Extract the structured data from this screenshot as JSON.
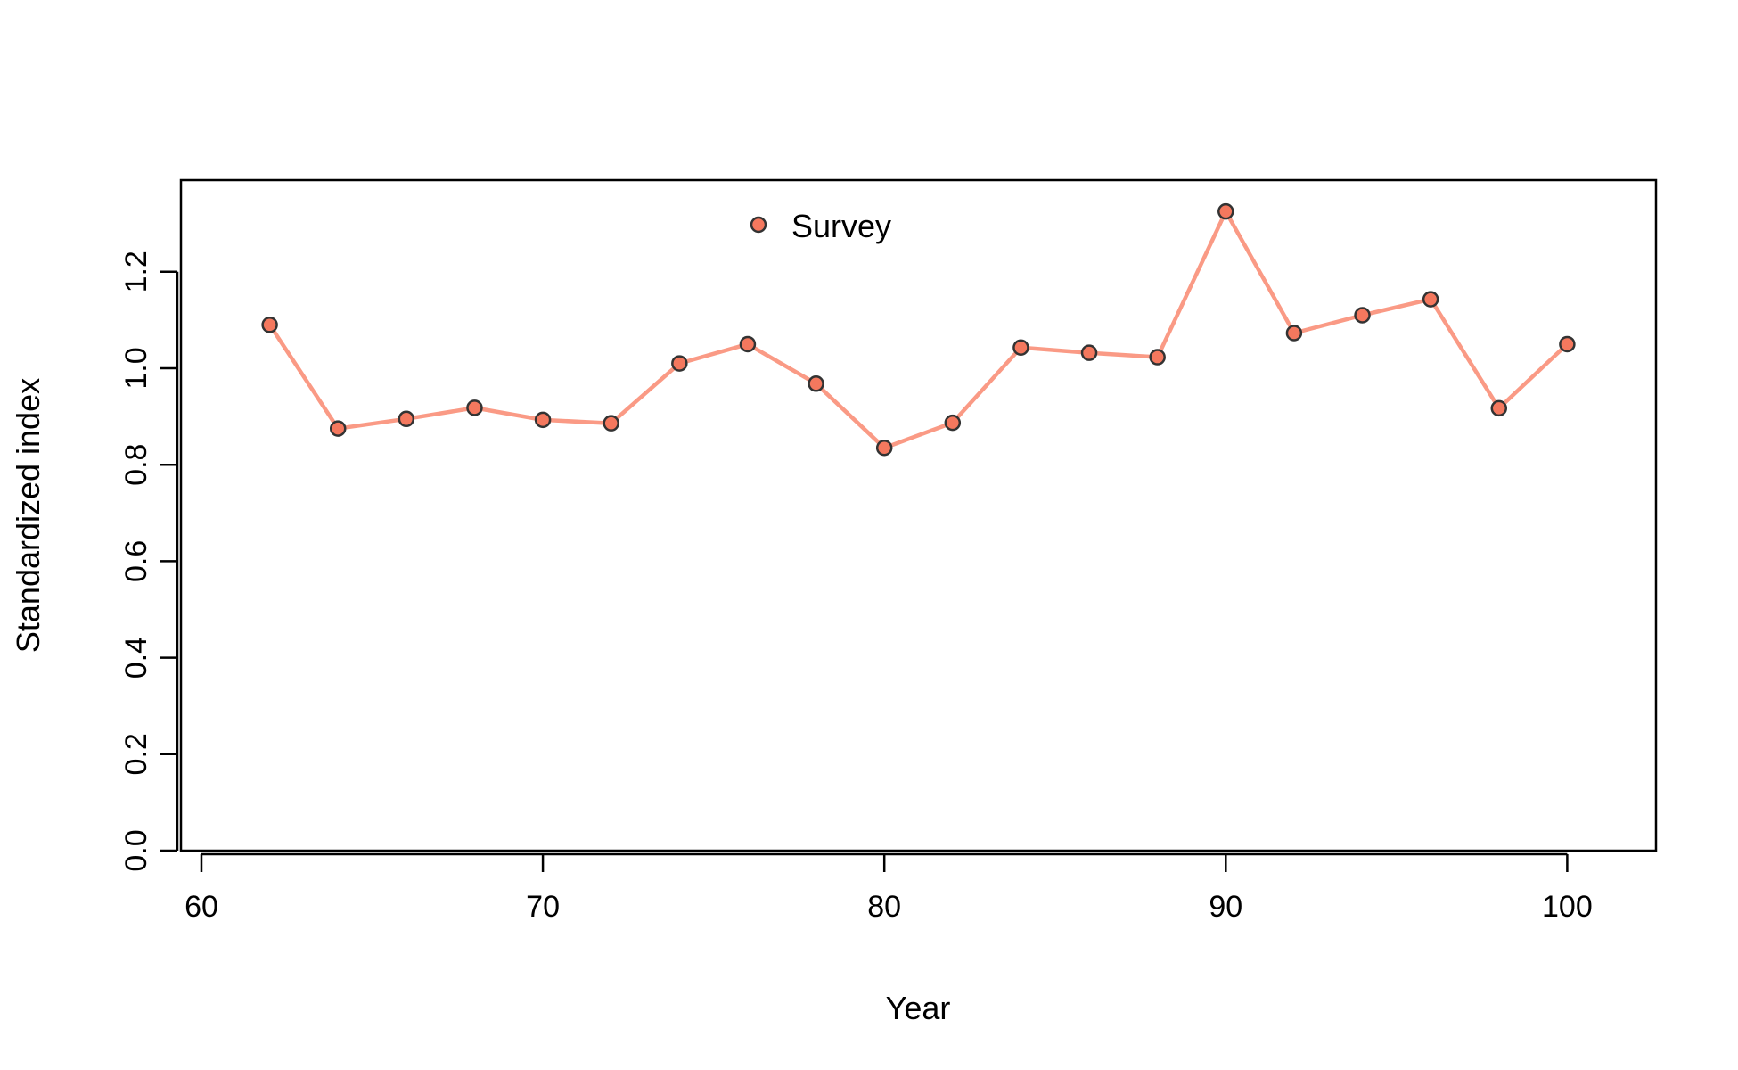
{
  "chart_data": {
    "type": "line",
    "title": "",
    "xlabel": "Year",
    "ylabel": "Standardized index",
    "xlim": [
      59.4,
      102.6
    ],
    "ylim": [
      0,
      1.39
    ],
    "xticks": [
      60,
      70,
      80,
      90,
      100
    ],
    "yticks": [
      0.0,
      0.2,
      0.4,
      0.6,
      0.8,
      1.0,
      1.2
    ],
    "ytick_labels": [
      "0.0",
      "0.2",
      "0.4",
      "0.6",
      "0.8",
      "1.0",
      "1.2"
    ],
    "grid": false,
    "legend": {
      "position": "top-center",
      "entries": [
        "Survey"
      ]
    },
    "colors": {
      "line": "#fa9a85",
      "point_fill": "#f4785e",
      "point_edge": "#333333"
    },
    "series": [
      {
        "name": "Survey",
        "x": [
          62,
          64,
          66,
          68,
          70,
          72,
          74,
          76,
          78,
          80,
          82,
          84,
          86,
          88,
          90,
          92,
          94,
          96,
          98,
          100
        ],
        "y": [
          1.09,
          0.875,
          0.895,
          0.918,
          0.893,
          0.886,
          1.01,
          1.05,
          0.968,
          0.835,
          0.887,
          1.043,
          1.032,
          1.023,
          1.325,
          1.073,
          1.11,
          1.143,
          0.917,
          1.05
        ]
      }
    ]
  }
}
